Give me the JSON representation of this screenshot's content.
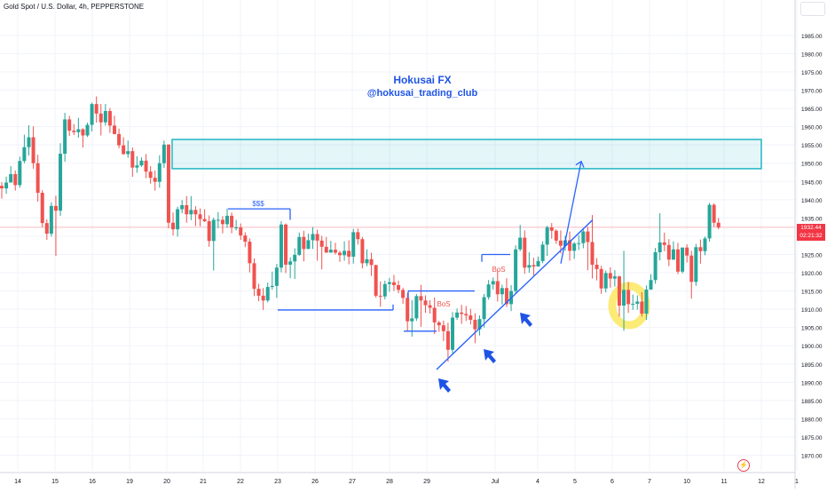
{
  "header": {
    "symbol": "Gold Spot / U.S. Dollar, 4h, PEPPERSTONE"
  },
  "watermark": {
    "line1": "Hokusai FX",
    "line2": "@hokusai_trading_club"
  },
  "price_tag": {
    "price": "1932.44",
    "countdown": "02:21:32"
  },
  "annotations": {
    "liquidity": "$$$",
    "bos1": "BoS",
    "bos2": "BoS"
  },
  "colors": {
    "up": "#26a69a",
    "down": "#ef5350",
    "zone": "#22b5c4",
    "lines": "#2962ff",
    "highlight": "#fbe85f",
    "arrows": "#1e53e5",
    "price_line": "#f7a6ad"
  },
  "icons": {
    "settings": "lightning-bolt-icon"
  },
  "chart_data": {
    "type": "candlestick",
    "title": "Gold Spot / U.S. Dollar, 4h, PEPPERSTONE",
    "ylim": [
      1866,
      1993
    ],
    "yticks": [
      1870,
      1875,
      1880,
      1885,
      1890,
      1895,
      1900,
      1905,
      1910,
      1915,
      1920,
      1925,
      1930,
      1935,
      1940,
      1945,
      1950,
      1955,
      1960,
      1965,
      1970,
      1975,
      1980,
      1985
    ],
    "xticks": [
      "14",
      "15",
      "16",
      "19",
      "20",
      "21",
      "22",
      "23",
      "26",
      "27",
      "28",
      "29",
      "Jul",
      "4",
      "5",
      "6",
      "7",
      "10",
      "11",
      "12",
      "1"
    ],
    "current_price": 1932.44,
    "candles": [
      [
        1943.8,
        1943.1,
        1944.8,
        1940.3
      ],
      [
        1943.1,
        1944.7,
        1946.3,
        1941.6
      ],
      [
        1944.7,
        1947.0,
        1949.2,
        1945.9
      ],
      [
        1947.0,
        1944.0,
        1948.0,
        1942.5
      ],
      [
        1944.0,
        1950.6,
        1951.8,
        1943.3
      ],
      [
        1950.6,
        1954.4,
        1957.8,
        1950.0
      ],
      [
        1954.4,
        1957.1,
        1960.4,
        1952.1
      ],
      [
        1957.1,
        1950.0,
        1960.1,
        1948.5
      ],
      [
        1950.0,
        1941.9,
        1952.3,
        1939.5
      ],
      [
        1941.9,
        1933.6,
        1942.6,
        1932.5
      ],
      [
        1933.6,
        1930.7,
        1934.6,
        1929.0
      ],
      [
        1930.7,
        1938.3,
        1939.3,
        1929.9
      ],
      [
        1938.3,
        1937.0,
        1941.1,
        1924.6
      ],
      [
        1937.0,
        1952.6,
        1955.5,
        1935.6
      ],
      [
        1952.6,
        1962.0,
        1963.8,
        1950.4
      ],
      [
        1962.0,
        1958.9,
        1963.0,
        1957.5
      ],
      [
        1958.9,
        1958.5,
        1960.7,
        1957.7
      ],
      [
        1958.5,
        1959.3,
        1962.4,
        1957.0
      ],
      [
        1959.3,
        1957.6,
        1959.6,
        1954.3
      ],
      [
        1957.6,
        1960.5,
        1961.1,
        1957.2
      ],
      [
        1960.5,
        1966.2,
        1966.6,
        1958.7
      ],
      [
        1966.2,
        1963.6,
        1968.3,
        1961.1
      ],
      [
        1963.6,
        1961.2,
        1966.2,
        1957.6
      ],
      [
        1961.2,
        1964.3,
        1966.2,
        1960.3
      ],
      [
        1964.3,
        1960.3,
        1965.1,
        1958.3
      ],
      [
        1960.3,
        1958.0,
        1963.0,
        1957.9
      ],
      [
        1958.0,
        1954.9,
        1959.5,
        1954.1
      ],
      [
        1954.9,
        1952.5,
        1957.1,
        1952.3
      ],
      [
        1952.5,
        1953.3,
        1956.2,
        1951.5
      ],
      [
        1953.3,
        1948.8,
        1954.3,
        1946.3
      ],
      [
        1948.8,
        1949.4,
        1951.9,
        1947.4
      ],
      [
        1949.4,
        1950.7,
        1951.6,
        1949.0
      ],
      [
        1950.7,
        1947.7,
        1952.5,
        1945.9
      ],
      [
        1947.7,
        1946.0,
        1949.2,
        1944.4
      ],
      [
        1946.0,
        1944.9,
        1948.0,
        1942.5
      ],
      [
        1944.9,
        1950.0,
        1952.2,
        1943.3
      ],
      [
        1950.0,
        1955.1,
        1956.2,
        1948.7
      ],
      [
        1955.1,
        1933.7,
        1955.2,
        1932.2
      ],
      [
        1933.7,
        1931.9,
        1936.5,
        1930.2
      ],
      [
        1931.9,
        1937.4,
        1938.1,
        1929.9
      ],
      [
        1937.4,
        1938.5,
        1939.9,
        1936.3
      ],
      [
        1938.5,
        1936.0,
        1941.0,
        1933.7
      ],
      [
        1936.0,
        1937.2,
        1941.0,
        1934.4
      ],
      [
        1937.2,
        1936.0,
        1938.2,
        1932.8
      ],
      [
        1936.0,
        1934.7,
        1937.6,
        1932.7
      ],
      [
        1934.7,
        1934.1,
        1937.4,
        1933.9
      ],
      [
        1934.1,
        1928.7,
        1935.7,
        1927.1
      ],
      [
        1928.7,
        1934.5,
        1935.1,
        1920.6
      ],
      [
        1934.5,
        1934.5,
        1936.6,
        1932.2
      ],
      [
        1934.5,
        1933.3,
        1935.5,
        1930.8
      ],
      [
        1933.3,
        1935.6,
        1937.6,
        1932.3
      ],
      [
        1935.6,
        1932.4,
        1936.5,
        1930.8
      ],
      [
        1932.4,
        1932.4,
        1934.5,
        1931.6
      ],
      [
        1932.4,
        1930.2,
        1933.5,
        1929.0
      ],
      [
        1930.2,
        1928.5,
        1931.1,
        1927.0
      ],
      [
        1928.5,
        1922.6,
        1929.4,
        1920.1
      ],
      [
        1922.6,
        1915.6,
        1923.9,
        1913.6
      ],
      [
        1915.6,
        1913.7,
        1917.0,
        1912.2
      ],
      [
        1913.7,
        1912.4,
        1915.8,
        1909.8
      ],
      [
        1912.4,
        1916.1,
        1917.3,
        1911.9
      ],
      [
        1916.1,
        1916.4,
        1920.3,
        1915.4
      ],
      [
        1916.4,
        1921.4,
        1922.4,
        1913.1
      ],
      [
        1921.4,
        1933.2,
        1934.1,
        1920.1
      ],
      [
        1933.2,
        1922.2,
        1933.5,
        1919.9
      ],
      [
        1922.2,
        1923.1,
        1924.2,
        1918.5
      ],
      [
        1923.1,
        1924.9,
        1926.7,
        1918.3
      ],
      [
        1924.9,
        1929.8,
        1931.0,
        1924.6
      ],
      [
        1929.8,
        1926.5,
        1931.5,
        1923.1
      ],
      [
        1926.5,
        1928.9,
        1930.7,
        1927.3
      ],
      [
        1928.9,
        1930.6,
        1932.5,
        1926.5
      ],
      [
        1930.6,
        1928.8,
        1931.8,
        1923.3
      ],
      [
        1928.8,
        1927.1,
        1930.1,
        1920.9
      ],
      [
        1927.1,
        1925.5,
        1929.8,
        1925.5
      ],
      [
        1925.5,
        1926.3,
        1928.7,
        1925.6
      ],
      [
        1926.3,
        1925.5,
        1928.2,
        1925.0
      ],
      [
        1925.5,
        1924.8,
        1926.0,
        1923.0
      ],
      [
        1924.8,
        1926.0,
        1928.6,
        1923.3
      ],
      [
        1926.0,
        1924.4,
        1928.9,
        1922.3
      ],
      [
        1924.4,
        1931.1,
        1932.0,
        1922.5
      ],
      [
        1931.1,
        1929.2,
        1932.1,
        1927.7
      ],
      [
        1929.2,
        1922.6,
        1929.8,
        1921.2
      ],
      [
        1922.6,
        1923.7,
        1926.4,
        1921.8
      ],
      [
        1923.7,
        1922.1,
        1925.5,
        1919.1
      ],
      [
        1922.1,
        1913.7,
        1922.2,
        1913.2
      ],
      [
        1913.7,
        1913.5,
        1917.6,
        1910.7
      ],
      [
        1913.5,
        1916.9,
        1917.8,
        1912.7
      ],
      [
        1916.9,
        1917.4,
        1918.6,
        1914.8
      ],
      [
        1917.4,
        1916.6,
        1919.4,
        1915.0
      ],
      [
        1916.6,
        1915.3,
        1917.8,
        1914.4
      ],
      [
        1915.3,
        1913.1,
        1915.9,
        1911.5
      ],
      [
        1913.1,
        1906.7,
        1914.4,
        1903.9
      ],
      [
        1906.7,
        1907.5,
        1912.5,
        1902.5
      ],
      [
        1907.5,
        1913.6,
        1914.2,
        1906.8
      ],
      [
        1913.6,
        1912.4,
        1916.7,
        1905.2
      ],
      [
        1912.4,
        1911.1,
        1913.8,
        1909.0
      ],
      [
        1911.1,
        1910.4,
        1912.5,
        1908.8
      ],
      [
        1910.4,
        1906.4,
        1913.2,
        1903.2
      ],
      [
        1906.4,
        1905.6,
        1906.8,
        1903.8
      ],
      [
        1905.6,
        1904.0,
        1906.9,
        1901.3
      ],
      [
        1904.0,
        1898.9,
        1906.3,
        1895.6
      ],
      [
        1898.9,
        1907.7,
        1909.2,
        1898.0
      ],
      [
        1907.7,
        1909.1,
        1910.2,
        1907.1
      ],
      [
        1909.1,
        1908.7,
        1911.2,
        1906.0
      ],
      [
        1908.7,
        1908.3,
        1910.9,
        1906.8
      ],
      [
        1908.3,
        1907.1,
        1910.1,
        1905.8
      ],
      [
        1907.1,
        1904.5,
        1908.9,
        1900.7
      ],
      [
        1904.5,
        1907.3,
        1908.3,
        1902.8
      ],
      [
        1907.3,
        1913.3,
        1914.2,
        1905.0
      ],
      [
        1913.3,
        1916.8,
        1918.0,
        1912.6
      ],
      [
        1916.8,
        1917.7,
        1918.7,
        1915.4
      ],
      [
        1917.7,
        1914.1,
        1920.6,
        1912.1
      ],
      [
        1914.1,
        1915.8,
        1916.7,
        1911.3
      ],
      [
        1915.8,
        1911.4,
        1918.5,
        1910.6
      ],
      [
        1911.4,
        1915.0,
        1916.6,
        1909.5
      ],
      [
        1915.0,
        1926.4,
        1927.5,
        1914.3
      ],
      [
        1926.4,
        1929.6,
        1933.1,
        1925.9
      ],
      [
        1929.6,
        1921.4,
        1931.6,
        1919.7
      ],
      [
        1921.4,
        1922.1,
        1925.6,
        1920.0
      ],
      [
        1922.1,
        1921.7,
        1924.1,
        1919.3
      ],
      [
        1921.7,
        1923.2,
        1924.4,
        1922.1
      ],
      [
        1923.2,
        1927.7,
        1928.6,
        1922.6
      ],
      [
        1927.7,
        1932.4,
        1932.9,
        1924.6
      ],
      [
        1932.4,
        1931.5,
        1933.6,
        1929.3
      ],
      [
        1931.5,
        1928.8,
        1931.9,
        1927.9
      ],
      [
        1928.8,
        1927.4,
        1931.6,
        1925.3
      ],
      [
        1927.4,
        1928.9,
        1930.1,
        1926.0
      ],
      [
        1928.9,
        1926.0,
        1931.3,
        1923.3
      ],
      [
        1926.0,
        1928.0,
        1928.4,
        1923.8
      ],
      [
        1928.0,
        1928.1,
        1930.3,
        1926.2
      ],
      [
        1928.1,
        1931.3,
        1932.2,
        1926.7
      ],
      [
        1931.3,
        1928.4,
        1932.6,
        1920.7
      ],
      [
        1928.4,
        1922.2,
        1935.8,
        1918.4
      ],
      [
        1922.2,
        1921.0,
        1924.0,
        1917.9
      ],
      [
        1921.0,
        1915.7,
        1921.9,
        1914.2
      ],
      [
        1915.7,
        1919.9,
        1920.6,
        1914.6
      ],
      [
        1919.9,
        1918.4,
        1921.5,
        1915.9
      ],
      [
        1918.4,
        1919.0,
        1920.7,
        1916.2
      ],
      [
        1919.0,
        1911.0,
        1919.2,
        1908.0
      ],
      [
        1911.0,
        1915.3,
        1926.0,
        1904.1
      ],
      [
        1915.3,
        1911.4,
        1917.5,
        1909.0
      ],
      [
        1911.4,
        1911.5,
        1914.0,
        1909.8
      ],
      [
        1911.5,
        1912.1,
        1913.8,
        1909.9
      ],
      [
        1912.1,
        1908.8,
        1914.7,
        1908.0
      ],
      [
        1908.8,
        1915.4,
        1916.5,
        1907.1
      ],
      [
        1915.4,
        1918.0,
        1919.6,
        1915.3
      ],
      [
        1918.0,
        1925.6,
        1926.8,
        1917.0
      ],
      [
        1925.6,
        1928.3,
        1936.3,
        1923.4
      ],
      [
        1928.3,
        1927.6,
        1931.0,
        1925.9
      ],
      [
        1927.6,
        1923.6,
        1929.2,
        1921.8
      ],
      [
        1923.6,
        1926.4,
        1928.6,
        1923.5
      ],
      [
        1926.4,
        1920.3,
        1928.2,
        1919.6
      ],
      [
        1920.3,
        1926.9,
        1926.9,
        1919.8
      ],
      [
        1926.9,
        1924.7,
        1927.8,
        1922.8
      ],
      [
        1924.7,
        1917.5,
        1926.0,
        1912.9
      ],
      [
        1917.5,
        1927.0,
        1927.9,
        1916.4
      ],
      [
        1927.0,
        1925.9,
        1929.1,
        1922.5
      ],
      [
        1925.9,
        1929.4,
        1929.9,
        1924.8
      ],
      [
        1929.4,
        1938.6,
        1939.1,
        1928.5
      ],
      [
        1938.6,
        1933.7,
        1939.0,
        1932.6
      ],
      [
        1933.7,
        1932.4,
        1935.0,
        1931.9
      ]
    ],
    "zone": {
      "top": 1956.5,
      "bottom": 1948.5
    },
    "levels": {
      "liquidity_high": 1937.5,
      "range_low": 1909.8,
      "bos_level_1": 1915.0,
      "bos_level_2": 1925.0,
      "box_low": 1904.0
    },
    "trendline": {
      "from": 1893.5,
      "to": 1934.5
    },
    "projection": {
      "from": 1922.5,
      "to": 1950.5
    }
  }
}
